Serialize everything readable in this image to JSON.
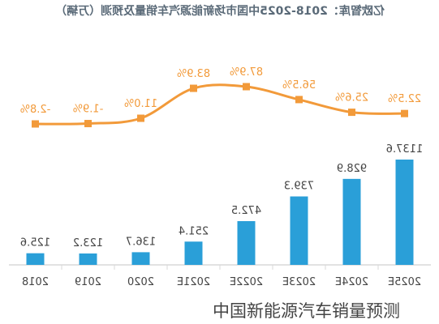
{
  "chart_data": {
    "type": "bar",
    "title": "亿欧智库：2018-2025中国市场新能源汽车销量及预测（万辆）",
    "categories": [
      "2025E",
      "2024E",
      "2023E",
      "2022E",
      "2021E",
      "2020",
      "2019",
      "2018"
    ],
    "series": [
      {
        "kind": "bar",
        "values": [
          1137.6,
          928.9,
          739.3,
          472.5,
          251.4,
          136.7,
          123.2,
          125.6
        ]
      },
      {
        "kind": "line",
        "values": [
          22.5,
          25.6,
          56.5,
          87.9,
          83.9,
          11.0,
          -1.9,
          -2.8
        ]
      }
    ],
    "bar_labels": [
      "1137.6",
      "928.9",
      "739.3",
      "472.5",
      "251.4",
      "136.7",
      "123.2",
      "125.6"
    ],
    "line_labels": [
      "22.5%",
      "25.6%",
      "56.5%",
      "87.9%",
      "83.9%",
      "11.0%",
      "-1.9%",
      "-2.8%"
    ],
    "mirrored": true,
    "colors": {
      "bar": "#2a9fd8",
      "line": "#f29a3a",
      "text": "#444444",
      "axis": "#d8d8d8"
    }
  },
  "caption": "中国新能源汽车销量预测"
}
